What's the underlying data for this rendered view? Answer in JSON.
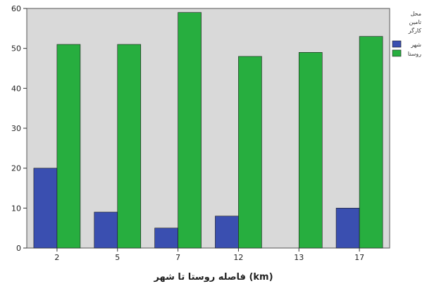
{
  "chart_data": {
    "type": "bar",
    "title": "",
    "xlabel": "فاصله روستا تا شهر (km)",
    "ylabel": "",
    "categories": [
      "2",
      "5",
      "7",
      "12",
      "13",
      "17"
    ],
    "series": [
      {
        "name": "شهر",
        "values": [
          20,
          9,
          5,
          8,
          0,
          10
        ],
        "color": "#3a4fb0"
      },
      {
        "name": "روستا",
        "values": [
          51,
          51,
          59,
          48,
          49,
          53
        ],
        "color": "#27ae3f"
      }
    ],
    "ylim": [
      0,
      60
    ],
    "yticks": [
      0,
      10,
      20,
      30,
      40,
      50,
      60
    ],
    "grid": false,
    "legend": {
      "title": "محل تامین کارگر",
      "placement": "top-right"
    },
    "plot_background": "#d9d9d9"
  }
}
